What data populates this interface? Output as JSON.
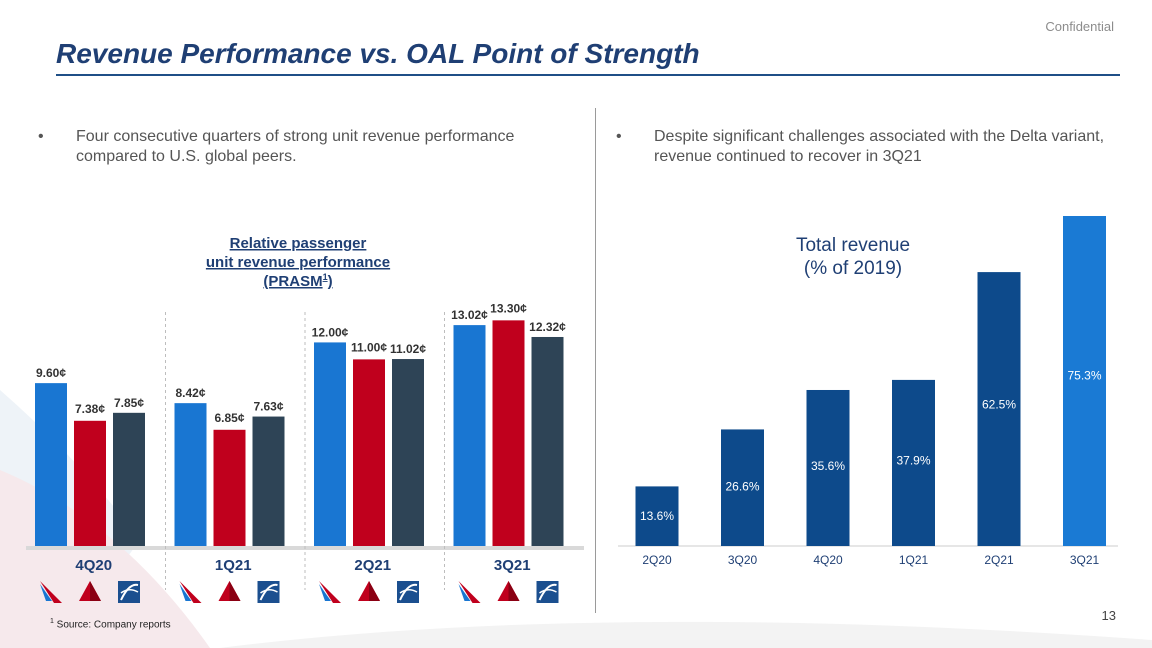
{
  "header": {
    "confidential": "Confidential",
    "title": "Revenue Performance vs. OAL Point of Strength"
  },
  "bullets": [
    {
      "symbol": "•",
      "text": "Four consecutive quarters of strong unit revenue performance compared to U.S. global peers."
    },
    {
      "symbol": "•",
      "text": "Despite significant challenges associated with the Delta variant, revenue continued to recover in 3Q21"
    }
  ],
  "footnote": {
    "marker": "1",
    "text": " Source: Company reports"
  },
  "page_number": "13",
  "colors": {
    "american": "#1976d2",
    "delta": "#c0001d",
    "united": "#2e4456",
    "revenue_dark": "#0d4a8b",
    "revenue_light": "#1a7ad4",
    "title": "#1f3f74"
  },
  "airline_logos": [
    "american-airlines-logo",
    "delta-logo",
    "united-logo"
  ],
  "chart_data": [
    {
      "type": "bar",
      "title_lines": [
        "Relative passenger",
        "unit revenue performance",
        "(PRASM"
      ],
      "title_superscript": "1",
      "title_suffix": ")",
      "categories": [
        "4Q20",
        "1Q21",
        "2Q21",
        "3Q21"
      ],
      "series": [
        {
          "name": "American",
          "values": [
            9.6,
            8.42,
            12.0,
            13.02
          ],
          "labels": [
            "9.60¢",
            "8.42¢",
            "12.00¢",
            "13.02¢"
          ]
        },
        {
          "name": "Delta",
          "values": [
            7.38,
            6.85,
            11.0,
            13.3
          ],
          "labels": [
            "7.38¢",
            "6.85¢",
            "11.00¢",
            "13.30¢"
          ]
        },
        {
          "name": "United",
          "values": [
            7.85,
            7.63,
            11.02,
            12.32
          ],
          "labels": [
            "7.85¢",
            "7.63¢",
            "11.02¢",
            "12.32¢"
          ]
        }
      ],
      "ylim": [
        0,
        14.5
      ]
    },
    {
      "type": "bar",
      "title_lines": [
        "Total revenue",
        "(% of 2019)"
      ],
      "categories": [
        "2Q20",
        "3Q20",
        "4Q20",
        "1Q21",
        "2Q21",
        "3Q21"
      ],
      "values": [
        13.6,
        26.6,
        35.6,
        37.9,
        62.5,
        75.3
      ],
      "labels": [
        "13.6%",
        "26.6%",
        "35.6%",
        "37.9%",
        "62.5%",
        "75.3%"
      ],
      "highlight_last": true,
      "ylim": [
        0,
        75.3
      ]
    }
  ]
}
